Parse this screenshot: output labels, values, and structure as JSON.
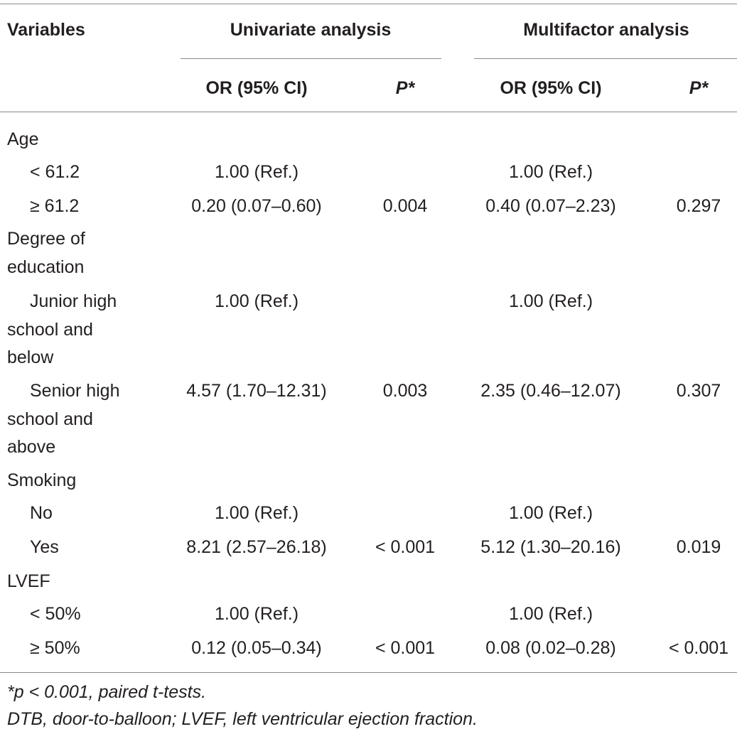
{
  "table": {
    "header": {
      "variables": "Variables",
      "univariate": "Univariate analysis",
      "multifactor": "Multifactor analysis",
      "or_ci_1": "OR (95% CI)",
      "p_1": "P*",
      "or_ci_2": "OR (95% CI)",
      "p_2": "P*"
    },
    "rows": [
      {
        "label": "Age",
        "uni_or": "",
        "uni_p": "",
        "multi_or": "",
        "multi_p": ""
      },
      {
        "label": "< 61.2",
        "uni_or": "1.00 (Ref.)",
        "uni_p": "",
        "multi_or": "1.00 (Ref.)",
        "multi_p": ""
      },
      {
        "label": "≥ 61.2",
        "uni_or": "0.20 (0.07–0.60)",
        "uni_p": "0.004",
        "multi_or": "0.40 (0.07–2.23)",
        "multi_p": "0.297"
      },
      {
        "label": "Degree of",
        "uni_or": "",
        "uni_p": "",
        "multi_or": "",
        "multi_p": ""
      },
      {
        "label": "education",
        "uni_or": "",
        "uni_p": "",
        "multi_or": "",
        "multi_p": ""
      },
      {
        "label": "Junior high",
        "uni_or": "1.00 (Ref.)",
        "uni_p": "",
        "multi_or": "1.00 (Ref.)",
        "multi_p": ""
      },
      {
        "label": "school and",
        "uni_or": "",
        "uni_p": "",
        "multi_or": "",
        "multi_p": ""
      },
      {
        "label": "below",
        "uni_or": "",
        "uni_p": "",
        "multi_or": "",
        "multi_p": ""
      },
      {
        "label": "Senior high",
        "uni_or": "4.57 (1.70–12.31)",
        "uni_p": "0.003",
        "multi_or": "2.35 (0.46–12.07)",
        "multi_p": "0.307"
      },
      {
        "label": "school and",
        "uni_or": "",
        "uni_p": "",
        "multi_or": "",
        "multi_p": ""
      },
      {
        "label": "above",
        "uni_or": "",
        "uni_p": "",
        "multi_or": "",
        "multi_p": ""
      },
      {
        "label": "Smoking",
        "uni_or": "",
        "uni_p": "",
        "multi_or": "",
        "multi_p": ""
      },
      {
        "label": "No",
        "uni_or": "1.00 (Ref.)",
        "uni_p": "",
        "multi_or": "1.00 (Ref.)",
        "multi_p": ""
      },
      {
        "label": "Yes",
        "uni_or": "8.21 (2.57–26.18)",
        "uni_p": "< 0.001",
        "multi_or": "5.12 (1.30–20.16)",
        "multi_p": "0.019"
      },
      {
        "label": "LVEF",
        "uni_or": "",
        "uni_p": "",
        "multi_or": "",
        "multi_p": ""
      },
      {
        "label": "< 50%",
        "uni_or": "1.00 (Ref.)",
        "uni_p": "",
        "multi_or": "1.00 (Ref.)",
        "multi_p": ""
      },
      {
        "label": "≥ 50%",
        "uni_or": "0.12 (0.05–0.34)",
        "uni_p": "< 0.001",
        "multi_or": "0.08 (0.02–0.28)",
        "multi_p": "< 0.001"
      }
    ]
  },
  "footnotes": {
    "line1": "*p < 0.001, paired t-tests.",
    "line2": "DTB, door-to-balloon; LVEF, left ventricular ejection fraction."
  }
}
